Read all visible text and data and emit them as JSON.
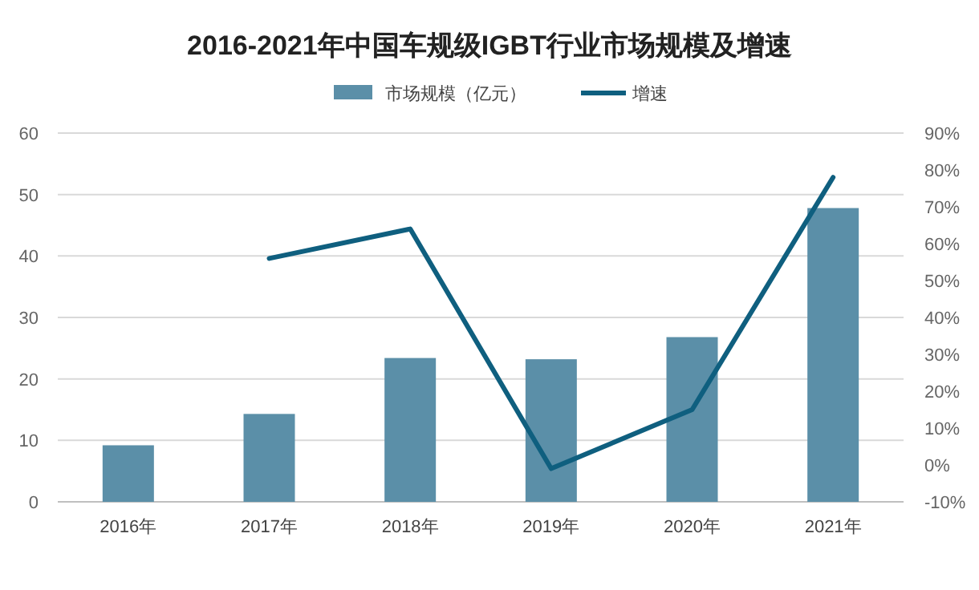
{
  "chart_data": {
    "type": "bar",
    "title": "2016-2021年中国车规级IGBT行业市场规模及增速",
    "categories": [
      "2016年",
      "2017年",
      "2018年",
      "2019年",
      "2020年",
      "2021年"
    ],
    "series": [
      {
        "name": "市场规模（亿元）",
        "color": "#5b8fa8",
        "values": [
          9.2,
          14.3,
          23.4,
          23.2,
          26.8,
          47.8
        ]
      },
      {
        "name": "增速",
        "type": "line",
        "axis": "y2",
        "color": "#0f5f7f",
        "values": [
          null,
          56,
          64,
          -1,
          15,
          78
        ]
      }
    ],
    "ylim": [
      0,
      60
    ],
    "yticks": [
      0,
      10,
      20,
      30,
      40,
      50,
      60
    ],
    "y2lim": [
      -10,
      90
    ],
    "y2ticks": [
      {
        "value": -10,
        "label": "-10%"
      },
      {
        "value": 0,
        "label": "0%"
      },
      {
        "value": 10,
        "label": "10%"
      },
      {
        "value": 20,
        "label": "20%"
      },
      {
        "value": 30,
        "label": "30%"
      },
      {
        "value": 40,
        "label": "40%"
      },
      {
        "value": 50,
        "label": "50%"
      },
      {
        "value": 60,
        "label": "60%"
      },
      {
        "value": 70,
        "label": "70%"
      },
      {
        "value": 80,
        "label": "80%"
      },
      {
        "value": 90,
        "label": "90%"
      }
    ],
    "grid": "y",
    "legend": "top"
  }
}
